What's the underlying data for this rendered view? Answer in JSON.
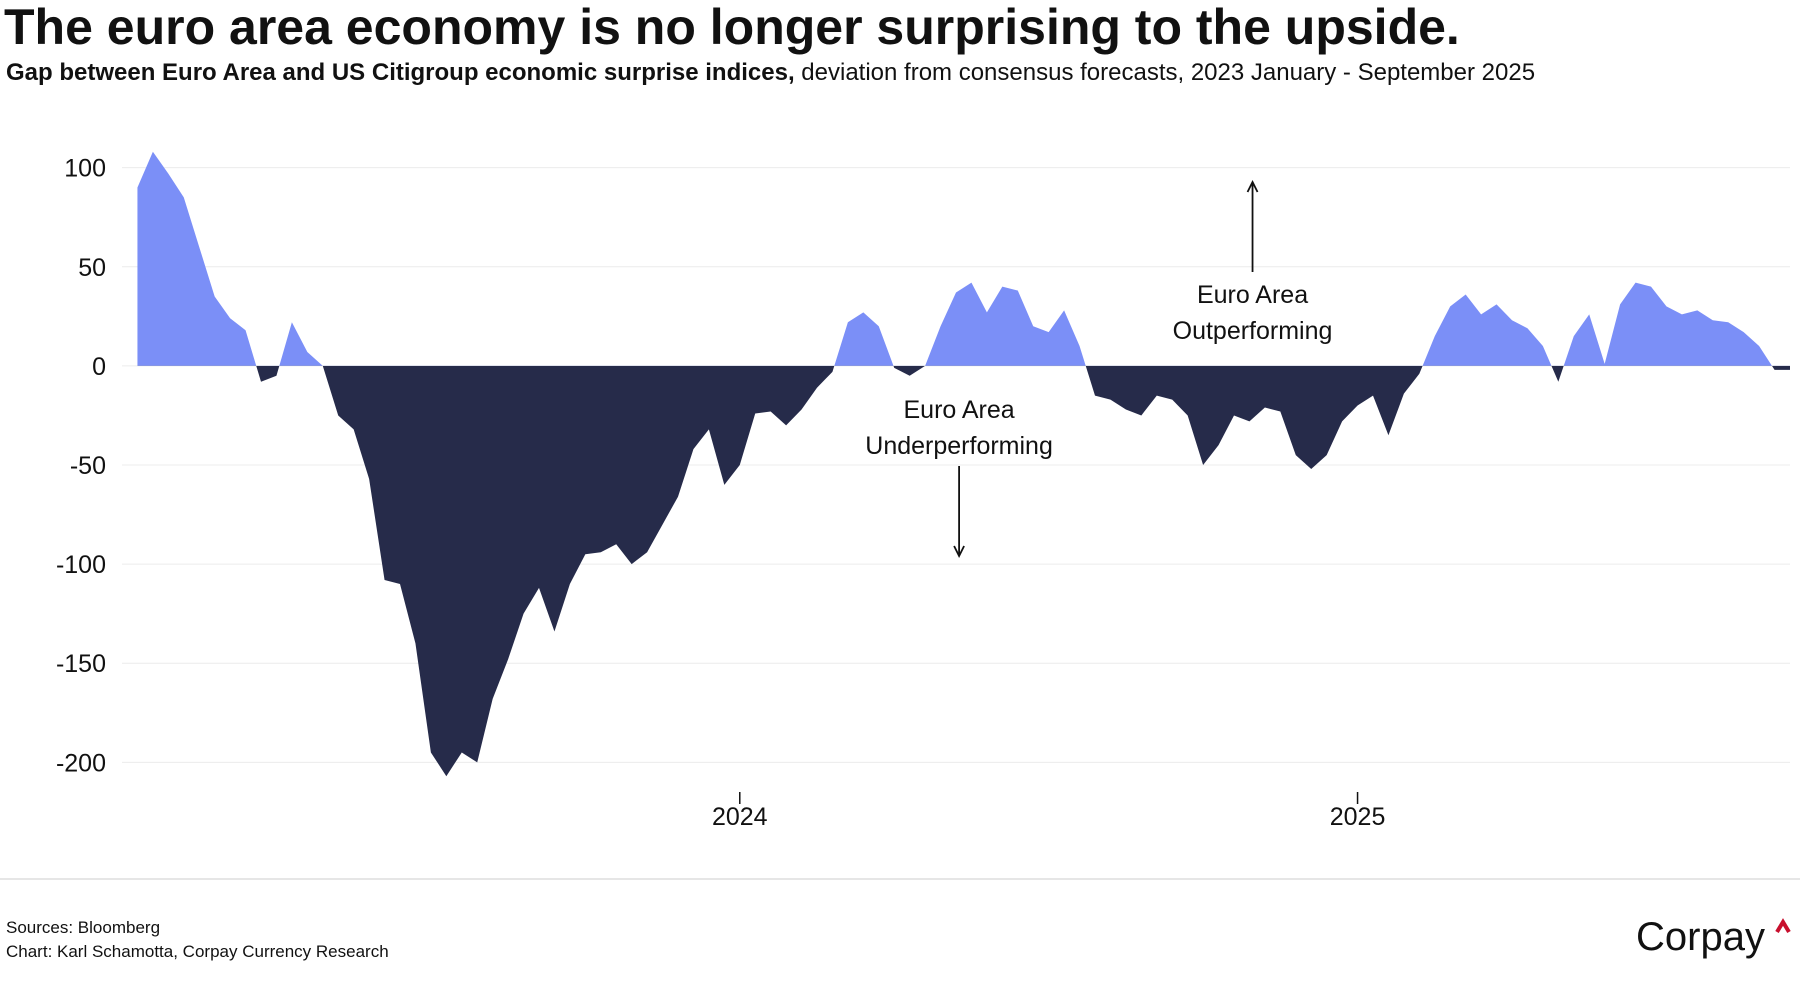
{
  "chart_data": {
    "type": "area",
    "title": "The euro area economy is no longer surprising to the upside.",
    "subtitle_bold": "Gap between Euro Area and US Citigroup economic surprise indices,",
    "subtitle": "deviation from consensus forecasts, 2023 January - September 2025",
    "x": [
      2023.025,
      2023.05,
      2023.075,
      2023.1,
      2023.125,
      2023.15,
      2023.175,
      2023.2,
      2023.225,
      2023.25,
      2023.275,
      2023.3,
      2023.325,
      2023.35,
      2023.375,
      2023.4,
      2023.425,
      2023.45,
      2023.475,
      2023.5,
      2023.525,
      2023.55,
      2023.575,
      2023.6,
      2023.625,
      2023.65,
      2023.675,
      2023.7,
      2023.725,
      2023.75,
      2023.775,
      2023.8,
      2023.825,
      2023.85,
      2023.875,
      2023.9,
      2023.925,
      2023.95,
      2023.975,
      2024,
      2024.025,
      2024.05,
      2024.075,
      2024.1,
      2024.125,
      2024.15,
      2024.175,
      2024.2,
      2024.225,
      2024.25,
      2024.275,
      2024.3,
      2024.325,
      2024.35,
      2024.375,
      2024.4,
      2024.425,
      2024.45,
      2024.475,
      2024.5,
      2024.525,
      2024.55,
      2024.575,
      2024.6,
      2024.625,
      2024.65,
      2024.675,
      2024.7,
      2024.725,
      2024.75,
      2024.775,
      2024.8,
      2024.825,
      2024.85,
      2024.875,
      2024.9,
      2024.925,
      2024.95,
      2024.975,
      2025,
      2025.025,
      2025.05,
      2025.075,
      2025.1,
      2025.125,
      2025.15,
      2025.175,
      2025.2,
      2025.225,
      2025.25,
      2025.275,
      2025.3,
      2025.325,
      2025.35,
      2025.375,
      2025.4,
      2025.425,
      2025.45,
      2025.475,
      2025.5,
      2025.525,
      2025.55,
      2025.575,
      2025.6,
      2025.625,
      2025.65,
      2025.675,
      2025.7
    ],
    "values": [
      90,
      108,
      97,
      85,
      60,
      35,
      24,
      18,
      -8,
      -5,
      22,
      7,
      0,
      -25,
      -32,
      -57,
      -108,
      -110,
      -140,
      -195,
      -207,
      -195,
      -200,
      -168,
      -148,
      -125,
      -112,
      -134,
      -110,
      -95,
      -94,
      -90,
      -100,
      -94,
      -80,
      -66,
      -42,
      -32,
      -60,
      -50,
      -24,
      -23,
      -30,
      -22,
      -11,
      -3,
      22,
      27,
      20,
      -1,
      -5,
      0,
      20,
      37,
      42,
      27,
      40,
      38,
      20,
      17,
      28,
      10,
      -15,
      -17,
      -22,
      -25,
      -15,
      -17,
      -25,
      -50,
      -40,
      -25,
      -28,
      -21,
      -23,
      -45,
      -52,
      -45,
      -28,
      -20,
      -15,
      -35,
      -14,
      -4,
      15,
      30,
      36,
      26,
      31,
      23,
      19,
      10,
      -8,
      15,
      26,
      1,
      31,
      42,
      40,
      30,
      26,
      28,
      23,
      22,
      17,
      10,
      -2,
      -2
    ],
    "positive_color": "#7b8ff7",
    "negative_color": "#262b4a",
    "xlim": [
      2023.0,
      2025.7
    ],
    "xticks": [
      2024,
      2025
    ],
    "ylim": [
      -220,
      120
    ],
    "yticks": [
      -200,
      -150,
      -100,
      -50,
      0,
      50,
      100
    ],
    "grid": true,
    "annotations": [
      {
        "lines": [
          "Euro Area",
          "Outperforming"
        ],
        "x": 2024.83,
        "direction": "up"
      },
      {
        "lines": [
          "Euro Area",
          "Underperforming"
        ],
        "x": 2024.355,
        "direction": "down"
      }
    ],
    "sources": "Sources: Bloomberg",
    "credit": "Chart: Karl Schamotta, Corpay Currency Research",
    "logo": "Corpay"
  }
}
